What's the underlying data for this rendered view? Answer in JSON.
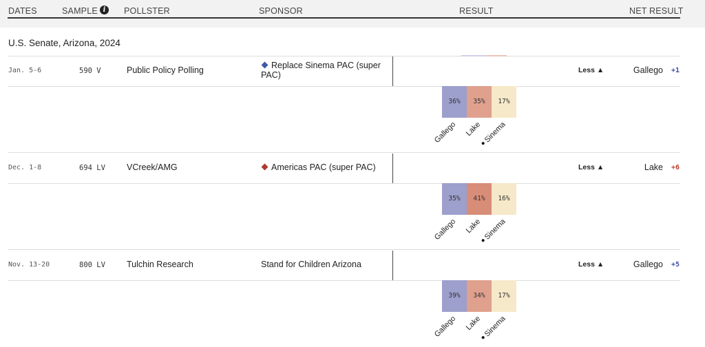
{
  "header": {
    "dates": "DATES",
    "sample": "SAMPLE",
    "info_icon": "info-icon",
    "pollster": "POLLSTER",
    "sponsor": "SPONSOR",
    "result": "RESULT",
    "net_result": "NET RESULT"
  },
  "section": {
    "title": "U.S. Senate, Arizona, 2024"
  },
  "colors": {
    "gallego": "#9d9fcc",
    "lake_light": "#e0a08e",
    "lake_dark": "#d88d78",
    "sinema": "#f6e9c9",
    "dem_text": "#3a4aa6",
    "rep_text": "#c0392b",
    "diamond_dem": "#3f5aa8",
    "diamond_rep": "#b03a2e"
  },
  "polls": [
    {
      "dates": "Jan. 5-6",
      "sample": "590 V",
      "pollster": "Public Policy Polling",
      "sponsor_line1": "Replace Sinema PAC (super",
      "sponsor_line2": "PAC)",
      "sponsor_party": "dem",
      "less": "Less ▲",
      "net_leader": "Gallego",
      "net_margin": "+1",
      "net_party": "dem",
      "results": [
        {
          "candidate": "Gallego",
          "pct": "36%",
          "value": 36
        },
        {
          "candidate": "Lake",
          "pct": "35%",
          "value": 35
        },
        {
          "candidate": "Sinema",
          "pct": "17%",
          "value": 17
        }
      ]
    },
    {
      "dates": "Dec. 1-8",
      "sample": "694 LV",
      "pollster": "VCreek/AMG",
      "sponsor_line1": "Americas PAC (super PAC)",
      "sponsor_line2": "",
      "sponsor_party": "rep",
      "less": "Less ▲",
      "net_leader": "Lake",
      "net_margin": "+6",
      "net_party": "rep",
      "results": [
        {
          "candidate": "Gallego",
          "pct": "35%",
          "value": 35
        },
        {
          "candidate": "Lake",
          "pct": "41%",
          "value": 41
        },
        {
          "candidate": "Sinema",
          "pct": "16%",
          "value": 16
        }
      ]
    },
    {
      "dates": "Nov. 13-20",
      "sample": "800 LV",
      "pollster": "Tulchin Research",
      "sponsor_line1": "Stand for Children Arizona",
      "sponsor_line2": "",
      "sponsor_party": "none",
      "less": "Less ▲",
      "net_leader": "Gallego",
      "net_margin": "+5",
      "net_party": "dem",
      "results": [
        {
          "candidate": "Gallego",
          "pct": "39%",
          "value": 39
        },
        {
          "candidate": "Lake",
          "pct": "34%",
          "value": 34
        },
        {
          "candidate": "Sinema",
          "pct": "17%",
          "value": 17
        }
      ]
    }
  ]
}
